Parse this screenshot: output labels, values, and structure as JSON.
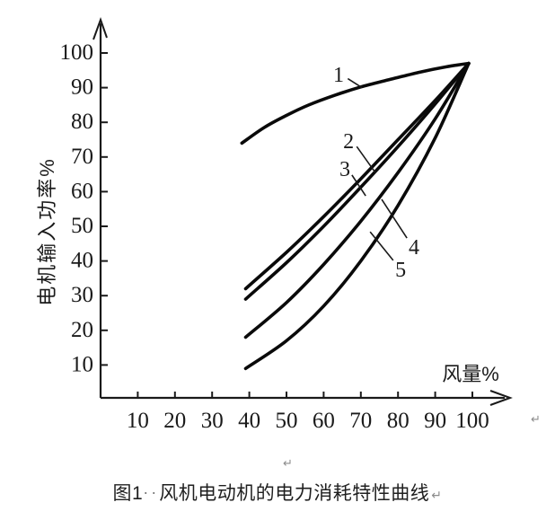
{
  "colors": {
    "background": "#ffffff",
    "ink": "#1a1a1a",
    "curve": "#0a0a0a",
    "formatting_mark_gray": "#8c8c8c"
  },
  "chart_data": {
    "type": "line",
    "title": "图1 风机电动机的电力消耗特性曲线",
    "xlabel": "风量%",
    "ylabel": "电机输入功率%",
    "xlim": [
      0,
      108
    ],
    "ylim": [
      0,
      104
    ],
    "x_ticks": [
      10,
      20,
      30,
      40,
      50,
      60,
      70,
      80,
      90,
      100
    ],
    "y_ticks": [
      10,
      20,
      30,
      40,
      50,
      60,
      70,
      80,
      90,
      100
    ],
    "grid": false,
    "legend_position": "none",
    "series": [
      {
        "name": "1",
        "points": [
          [
            38,
            74
          ],
          [
            44,
            78.5
          ],
          [
            50,
            82
          ],
          [
            56,
            85
          ],
          [
            63,
            87.8
          ],
          [
            70,
            90.2
          ],
          [
            78,
            92.4
          ],
          [
            86,
            94.5
          ],
          [
            93,
            96
          ],
          [
            99,
            97
          ]
        ]
      },
      {
        "name": "2",
        "points": [
          [
            39,
            32
          ],
          [
            50,
            42.5
          ],
          [
            60,
            52.8
          ],
          [
            70,
            63.7
          ],
          [
            80,
            75
          ],
          [
            90,
            86.3
          ],
          [
            99,
            97
          ]
        ]
      },
      {
        "name": "3",
        "points": [
          [
            39,
            29
          ],
          [
            50,
            39.5
          ],
          [
            60,
            50
          ],
          [
            70,
            61.3
          ],
          [
            80,
            73
          ],
          [
            90,
            85.3
          ],
          [
            99,
            97
          ]
        ]
      },
      {
        "name": "4",
        "points": [
          [
            39,
            18
          ],
          [
            50,
            28
          ],
          [
            60,
            39
          ],
          [
            70,
            51.5
          ],
          [
            80,
            65.5
          ],
          [
            90,
            81
          ],
          [
            99,
            97
          ]
        ]
      },
      {
        "name": "5",
        "points": [
          [
            39,
            9
          ],
          [
            50,
            17
          ],
          [
            60,
            27
          ],
          [
            70,
            40
          ],
          [
            80,
            56
          ],
          [
            90,
            75.5
          ],
          [
            99,
            97
          ]
        ]
      }
    ],
    "annotations": [
      {
        "label": "1",
        "label_at": [
          64.0,
          93.8
        ],
        "leader_from": [
          66.5,
          92.6
        ],
        "leader_to": [
          70.3,
          90.0
        ]
      },
      {
        "label": "2",
        "label_at": [
          66.7,
          74.6
        ],
        "leader_from": [
          68.9,
          73.0
        ],
        "leader_to": [
          73.9,
          65.5
        ]
      },
      {
        "label": "3",
        "label_at": [
          65.7,
          66.6
        ],
        "leader_from": [
          67.6,
          64.8
        ],
        "leader_to": [
          71.3,
          58.8
        ]
      },
      {
        "label": "4",
        "label_at": [
          84.3,
          44.0
        ],
        "leader_from": [
          82.4,
          46.6
        ],
        "leader_to": [
          75.6,
          57.8
        ]
      },
      {
        "label": "5",
        "label_at": [
          80.7,
          37.6
        ],
        "leader_from": [
          78.7,
          40.2
        ],
        "leader_to": [
          72.5,
          48.4
        ]
      }
    ]
  },
  "figure_caption": {
    "prefix": "图1",
    "separator_dots": "··",
    "title": "风机电动机的电力消耗特性曲线",
    "paragraph_mark": "↵"
  },
  "formatting_marks": {
    "above_caption": "↵",
    "right_of_axis": "↵"
  }
}
